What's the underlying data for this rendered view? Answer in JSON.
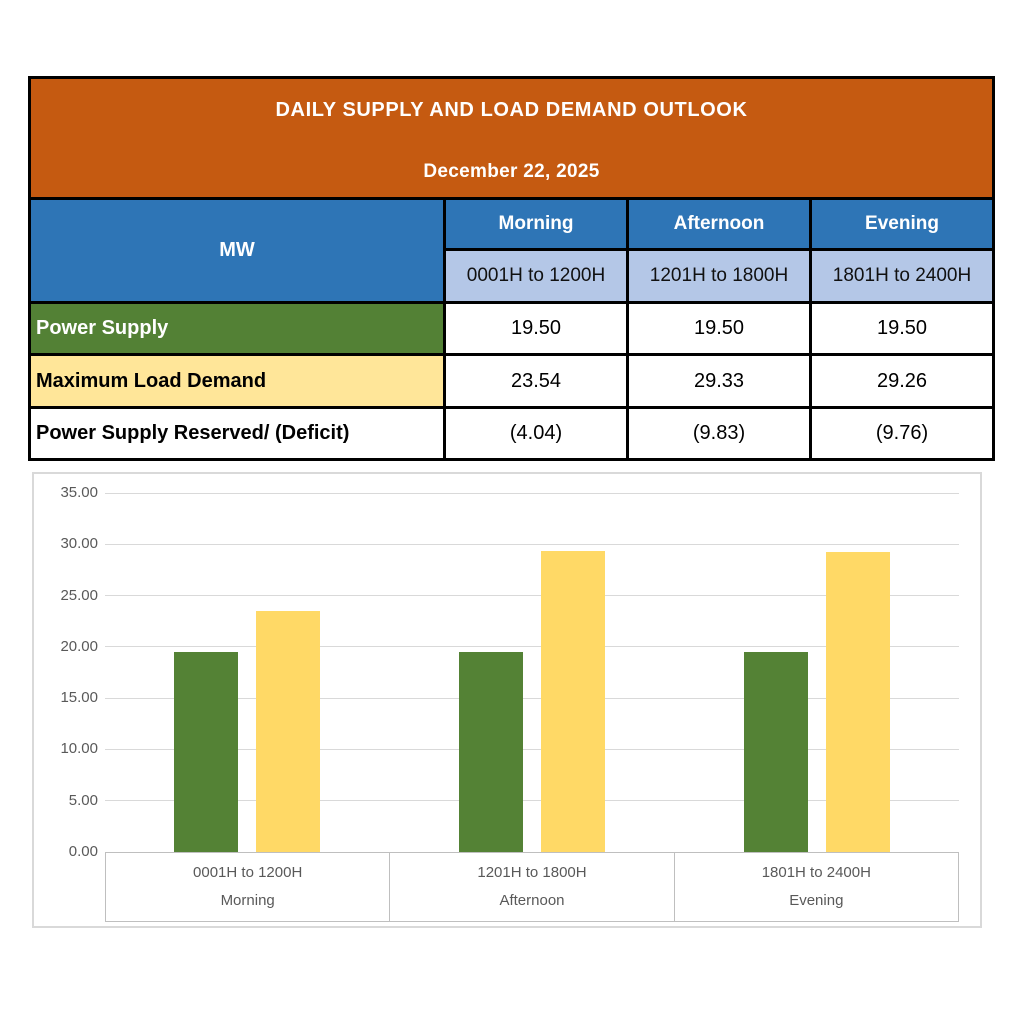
{
  "document": {
    "title": "DAILY SUPPLY AND LOAD DEMAND OUTLOOK",
    "date": "December 22, 2025"
  },
  "table": {
    "unit_header": "MW",
    "columns": [
      {
        "period": "Morning",
        "hours": "0001H to 1200H"
      },
      {
        "period": "Afternoon",
        "hours": "1201H to 1800H"
      },
      {
        "period": "Evening",
        "hours": "1801H to 2400H"
      }
    ],
    "rows": [
      {
        "label": "Power Supply",
        "values": [
          "19.50",
          "19.50",
          "19.50"
        ]
      },
      {
        "label": "Maximum Load Demand",
        "values": [
          "23.54",
          "29.33",
          "29.26"
        ]
      },
      {
        "label": "Power Supply Reserved/ (Deficit)",
        "values": [
          "(4.04)",
          "(9.83)",
          "(9.76)"
        ]
      }
    ]
  },
  "chart_data": {
    "type": "bar",
    "categories": [
      {
        "hours": "0001H to 1200H",
        "period": "Morning"
      },
      {
        "hours": "1201H to 1800H",
        "period": "Afternoon"
      },
      {
        "hours": "1801H to 2400H",
        "period": "Evening"
      }
    ],
    "series": [
      {
        "name": "Power Supply",
        "color": "#548235",
        "values": [
          19.5,
          19.5,
          19.5
        ]
      },
      {
        "name": "Maximum Load Demand",
        "color": "#FFD966",
        "values": [
          23.54,
          29.33,
          29.26
        ]
      }
    ],
    "title": "",
    "xlabel": "",
    "ylabel": "",
    "ylim": [
      0,
      35
    ],
    "ytick_step": 5,
    "ytick_decimals": 2,
    "grid": true,
    "legend": "none"
  },
  "colors": {
    "header_bg": "#C55A11",
    "period_header_bg": "#2E75B6",
    "hours_header_bg": "#B4C7E7",
    "supply_row_bg": "#538135",
    "demand_row_bg": "#FFE699",
    "bar_supply": "#548235",
    "bar_demand": "#FFD966",
    "chart_text": "#595959",
    "gridline": "#D9D9D9"
  }
}
